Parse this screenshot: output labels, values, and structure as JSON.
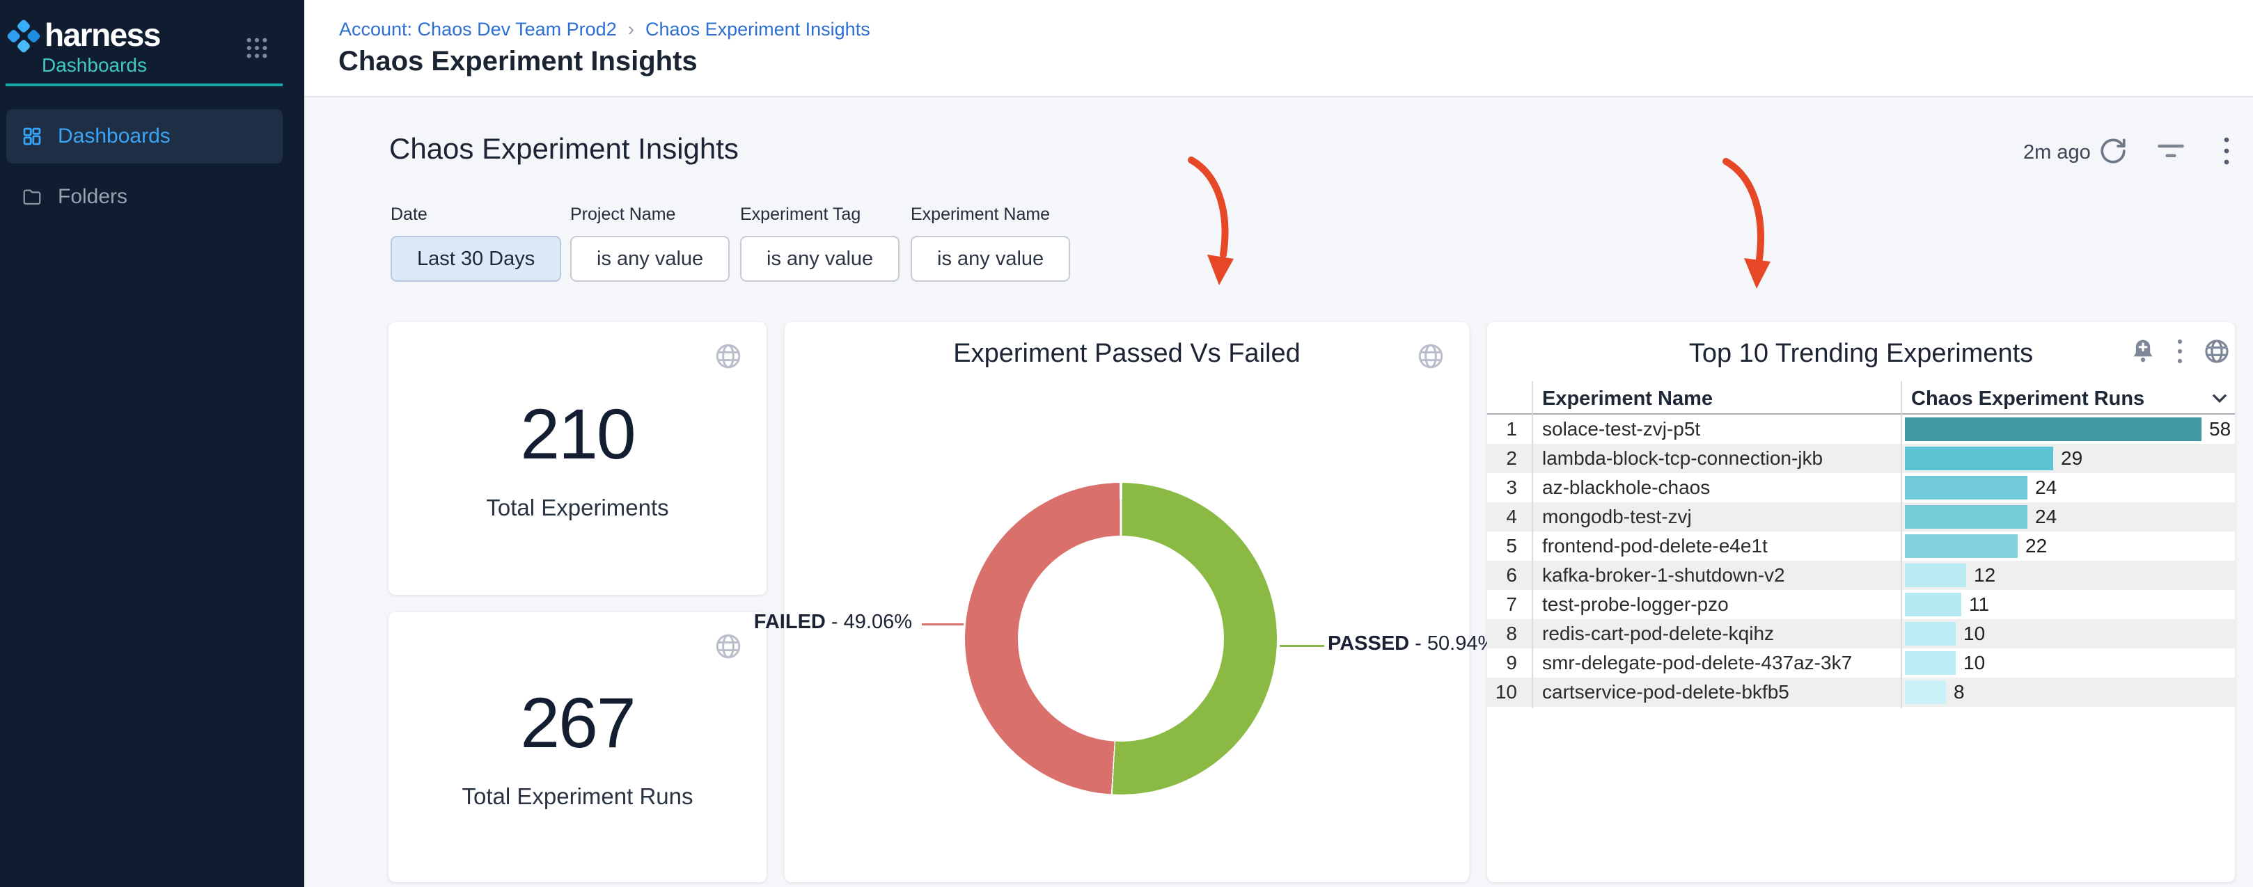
{
  "sidebar": {
    "brand": "harness",
    "module": "Dashboards",
    "items": [
      {
        "label": "Dashboards",
        "active": true
      },
      {
        "label": "Folders",
        "active": false
      }
    ]
  },
  "topbar": {
    "breadcrumb": [
      "Account: Chaos Dev Team Prod2",
      "Chaos Experiment Insights"
    ],
    "separator": "›",
    "title": "Chaos Experiment Insights"
  },
  "dashboard": {
    "title": "Chaos Experiment Insights",
    "last_refreshed": "2m ago"
  },
  "filters": [
    {
      "label": "Date",
      "value": "Last 30 Days",
      "applied": true
    },
    {
      "label": "Project Name",
      "value": "is any value",
      "applied": false
    },
    {
      "label": "Experiment Tag",
      "value": "is any value",
      "applied": false
    },
    {
      "label": "Experiment Name",
      "value": "is any value",
      "applied": false
    }
  ],
  "kpis": [
    {
      "value": "210",
      "label": "Total Experiments"
    },
    {
      "value": "267",
      "label": "Total Experiment Runs"
    }
  ],
  "chart_data": [
    {
      "type": "pie",
      "donut": true,
      "title": "Experiment Passed Vs Failed",
      "series": [
        {
          "name": "PASSED",
          "percent": "50.94",
          "color": "#8ab944"
        },
        {
          "name": "FAILED",
          "percent": "49.06",
          "color": "#d9706c"
        }
      ],
      "labels": [
        "PASSED - 50.94%",
        "FAILED - 49.06%"
      ],
      "legend_position": "outside-connectors"
    },
    {
      "type": "bar",
      "orientation": "horizontal",
      "title": "Top 10 Trending Experiments",
      "categories": [
        "solace-test-zvj-p5t",
        "lambda-block-tcp-connection-jkb",
        "az-blackhole-chaos",
        "mongodb-test-zvj",
        "frontend-pod-delete-e4e1t",
        "kafka-broker-1-shutdown-v2",
        "test-probe-logger-pzo",
        "redis-cart-pod-delete-kqihz",
        "smr-delegate-pod-delete-437az-3k7",
        "cartservice-pod-delete-bkfb5"
      ],
      "values": [
        58,
        29,
        24,
        24,
        22,
        12,
        11,
        10,
        10,
        8
      ],
      "xlim": [
        0,
        58
      ],
      "value_labels": true
    }
  ],
  "trending_table": {
    "title": "Top 10 Trending Experiments",
    "columns": [
      "Experiment Name",
      "Chaos Experiment Runs"
    ],
    "max_runs": 58,
    "rows": [
      {
        "rank": "1",
        "name": "solace-test-zvj-p5t",
        "runs": 58,
        "bar_color": "#4099a5"
      },
      {
        "rank": "2",
        "name": "lambda-block-tcp-connection-jkb",
        "runs": 29,
        "bar_color": "#5cc3d2"
      },
      {
        "rank": "3",
        "name": "az-blackhole-chaos",
        "runs": 24,
        "bar_color": "#70cad7"
      },
      {
        "rank": "4",
        "name": "mongodb-test-zvj",
        "runs": 24,
        "bar_color": "#76ccd9"
      },
      {
        "rank": "5",
        "name": "frontend-pod-delete-e4e1t",
        "runs": 22,
        "bar_color": "#82d1dc"
      },
      {
        "rank": "6",
        "name": "kafka-broker-1-shutdown-v2",
        "runs": 12,
        "bar_color": "#b9ebf3"
      },
      {
        "rank": "7",
        "name": "test-probe-logger-pzo",
        "runs": 11,
        "bar_color": "#b5eaf3"
      },
      {
        "rank": "8",
        "name": "redis-cart-pod-delete-kqihz",
        "runs": 10,
        "bar_color": "#bcecf4"
      },
      {
        "rank": "9",
        "name": "smr-delegate-pod-delete-437az-3k7",
        "runs": 10,
        "bar_color": "#bcecf4"
      },
      {
        "rank": "10",
        "name": "cartservice-pod-delete-bkfb5",
        "runs": 8,
        "bar_color": "#c9f1f7"
      }
    ]
  },
  "colors": {
    "passed": "#8ab944",
    "failed": "#d9706c",
    "annotation_arrow": "#e64727",
    "sidebar_bg": "#101c2f",
    "accent_teal": "#16a8a3",
    "link_blue": "#2d6fd2",
    "active_blue": "#3ca4f5"
  }
}
